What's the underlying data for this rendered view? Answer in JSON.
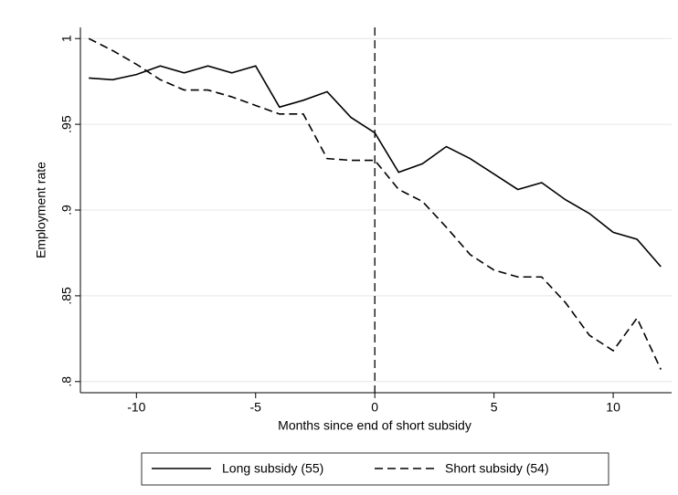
{
  "chart_data": {
    "type": "line",
    "x_label": "Months since end of short subsidy",
    "y_label": "Employment rate",
    "x": [
      -12,
      -11,
      -10,
      -9,
      -8,
      -7,
      -6,
      -5,
      -4,
      -3,
      -2,
      -1,
      0,
      1,
      2,
      3,
      4,
      5,
      6,
      7,
      8,
      9,
      10,
      11,
      12
    ],
    "series": [
      {
        "name": "Long subsidy (55)",
        "color": "#000000",
        "dash": "solid",
        "values": [
          0.977,
          0.976,
          0.979,
          0.984,
          0.98,
          0.984,
          0.98,
          0.984,
          0.96,
          0.964,
          0.969,
          0.954,
          0.945,
          0.922,
          0.927,
          0.937,
          0.93,
          0.921,
          0.912,
          0.916,
          0.906,
          0.898,
          0.887,
          0.883,
          0.867
        ]
      },
      {
        "name": "Short subsidy (54)",
        "color": "#000000",
        "dash": "dashed",
        "values": [
          1.0,
          0.993,
          0.985,
          0.976,
          0.97,
          0.97,
          0.966,
          0.961,
          0.956,
          0.956,
          0.93,
          0.929,
          0.929,
          0.912,
          0.905,
          0.89,
          0.874,
          0.865,
          0.861,
          0.861,
          0.846,
          0.827,
          0.818,
          0.837,
          0.807
        ]
      }
    ],
    "xlim": [
      -12.35,
      12.45
    ],
    "xticks": [
      -10,
      -5,
      0,
      5,
      10
    ],
    "ylim": [
      0.7935,
      1.0065
    ],
    "yticks": [
      {
        "value": 0.8,
        "label": ".8"
      },
      {
        "value": 0.85,
        "label": ".85"
      },
      {
        "value": 0.9,
        "label": ".9"
      },
      {
        "value": 0.95,
        "label": ".95"
      },
      1
    ],
    "vline": 0,
    "grid": true,
    "legend": "bottom"
  }
}
